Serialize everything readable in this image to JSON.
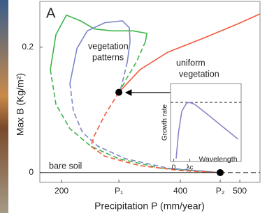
{
  "chart_data": [
    {
      "type": "line",
      "panel": "A",
      "xlabel": "Precipitation P (mm/year)",
      "ylabel": "Max B (Kg/m²)",
      "xlim": [
        163.5,
        534
      ],
      "ylim": [
        -0.0156,
        0.273
      ],
      "xticks": [
        200,
        {
          "value": 296.5,
          "label": "P₁"
        },
        400,
        {
          "value": 467,
          "label": "P₂"
        },
        500
      ],
      "yticks": [
        0,
        0.2
      ],
      "annotations": [
        "vegetation",
        "patterns",
        "uniform",
        "vegetation",
        "bare soil"
      ],
      "series": [
        {
          "color": "#3cb54a",
          "dash": false,
          "x": [
            181.2,
            190.6,
            208.2,
            231.8,
            255.3,
            284.7,
            320,
            343.5,
            341.2
          ],
          "values": [
            0.164,
            0.22,
            0.251,
            0.242,
            0.229,
            0.226,
            0.226,
            0.222,
            0.209
          ]
        },
        {
          "color": "#3cb54a",
          "dash": true,
          "x": [
            341.2,
            325.9,
            308.2,
            298.8
          ],
          "values": [
            0.209,
            0.176,
            0.148,
            0.131
          ]
        },
        {
          "color": "#3cb54a",
          "dash": true,
          "x": [
            181.2,
            190.6,
            214.1,
            249.4,
            296.5,
            367.1,
            467
          ],
          "values": [
            0.164,
            0.109,
            0.07,
            0.042,
            0.022,
            0.007,
            0
          ]
        },
        {
          "color": "#7b86c8",
          "dash": false,
          "x": [
            214.1,
            225.9,
            243.5,
            272.9,
            302.4,
            314.1,
            315.3,
            310.6
          ],
          "values": [
            0.142,
            0.198,
            0.226,
            0.239,
            0.242,
            0.231,
            0.209,
            0.176
          ]
        },
        {
          "color": "#7b86c8",
          "dash": true,
          "x": [
            310.6,
            303.5,
            298.8
          ],
          "values": [
            0.176,
            0.148,
            0.131
          ]
        },
        {
          "color": "#7b86c8",
          "dash": true,
          "x": [
            214.1,
            220,
            235.3,
            261.2,
            308.2,
            378.8,
            467
          ],
          "values": [
            0.142,
            0.098,
            0.064,
            0.042,
            0.022,
            0.007,
            0
          ]
        },
        {
          "color": "#f05a3c",
          "dash": false,
          "x": [
            296.5,
            331.8,
            378.8,
            437.6,
            496.5,
            534
          ],
          "values": [
            0.128,
            0.164,
            0.192,
            0.214,
            0.237,
            0.253
          ]
        },
        {
          "color": "#f05a3c",
          "dash": true,
          "x": [
            296.5,
            272.9,
            255.3,
            249.4,
            272.9,
            331.8,
            402.4,
            467
          ],
          "values": [
            0.128,
            0.092,
            0.059,
            0.042,
            0.026,
            0.011,
            0.003,
            0
          ]
        },
        {
          "color": "#000000",
          "dash": false,
          "x": [
            163.5,
            467
          ],
          "values": [
            0,
            0
          ]
        },
        {
          "color": "#000000",
          "dash": true,
          "x": [
            467,
            534
          ],
          "values": [
            0,
            0
          ]
        }
      ],
      "markers": {
        "color": "#000000",
        "x": [
          296.5,
          467
        ],
        "values": [
          0.128,
          0
        ]
      }
    },
    {
      "type": "line",
      "xlabel": "Wavelength",
      "ylabel": "Growth rate",
      "xlim": [
        -0.2,
        4.2
      ],
      "ylim": [
        -1,
        0.32
      ],
      "xticks": [
        0,
        {
          "value": 1,
          "label": "λc"
        }
      ],
      "hline": 0,
      "series": [
        {
          "color": "#8a86c8",
          "dash": false,
          "x": [
            0.15,
            0.3,
            0.5,
            0.8,
            1,
            1.3,
            2,
            3,
            4
          ],
          "values": [
            -0.95,
            -0.5,
            -0.15,
            -0.01,
            0,
            -0.03,
            -0.18,
            -0.4,
            -0.62
          ]
        }
      ]
    }
  ]
}
